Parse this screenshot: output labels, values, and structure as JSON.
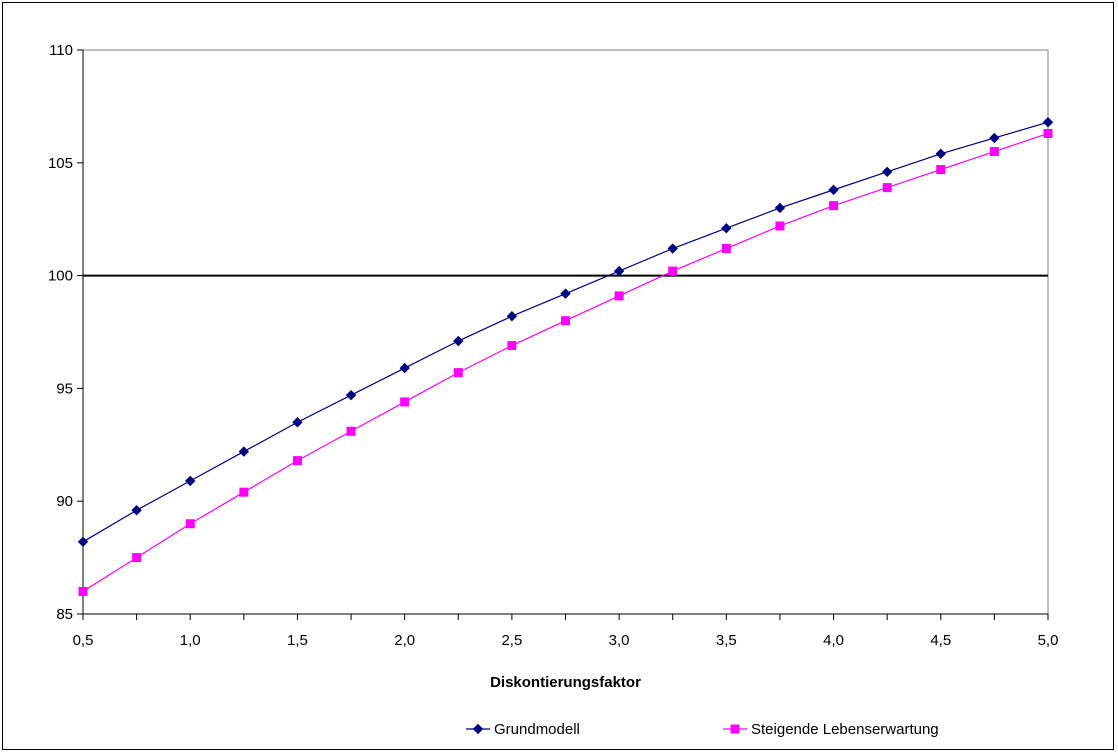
{
  "chart_data": {
    "type": "line",
    "title": "",
    "xlabel": "Diskontierungsfaktor",
    "ylabel": "",
    "xlim": [
      0.5,
      5.0
    ],
    "ylim": [
      85,
      110
    ],
    "x_ticks": [
      "0,5",
      "1,0",
      "1,5",
      "2,0",
      "2,5",
      "3,0",
      "3,5",
      "4,0",
      "4,5",
      "5,0"
    ],
    "y_ticks": [
      "85",
      "90",
      "95",
      "100",
      "105",
      "110"
    ],
    "grid": false,
    "reference_line": {
      "y": 100
    },
    "legend_position": "bottom",
    "x": [
      0.5,
      0.75,
      1.0,
      1.25,
      1.5,
      1.75,
      2.0,
      2.25,
      2.5,
      2.75,
      3.0,
      3.25,
      3.5,
      3.75,
      4.0,
      4.25,
      4.5,
      4.75,
      5.0
    ],
    "series": [
      {
        "name": "Grundmodell",
        "color": "#000080",
        "marker": "diamond",
        "values": [
          88.2,
          89.6,
          90.9,
          92.2,
          93.5,
          94.7,
          95.9,
          97.1,
          98.2,
          99.2,
          100.2,
          101.2,
          102.1,
          103.0,
          103.8,
          104.6,
          105.4,
          106.1,
          106.8
        ]
      },
      {
        "name": "Steigende Lebenserwartung",
        "color": "#FF00FF",
        "marker": "square",
        "values": [
          86.0,
          87.5,
          89.0,
          90.4,
          91.8,
          93.1,
          94.4,
          95.7,
          96.9,
          98.0,
          99.1,
          100.2,
          101.2,
          102.2,
          103.1,
          103.9,
          104.7,
          105.5,
          106.3
        ]
      }
    ]
  }
}
